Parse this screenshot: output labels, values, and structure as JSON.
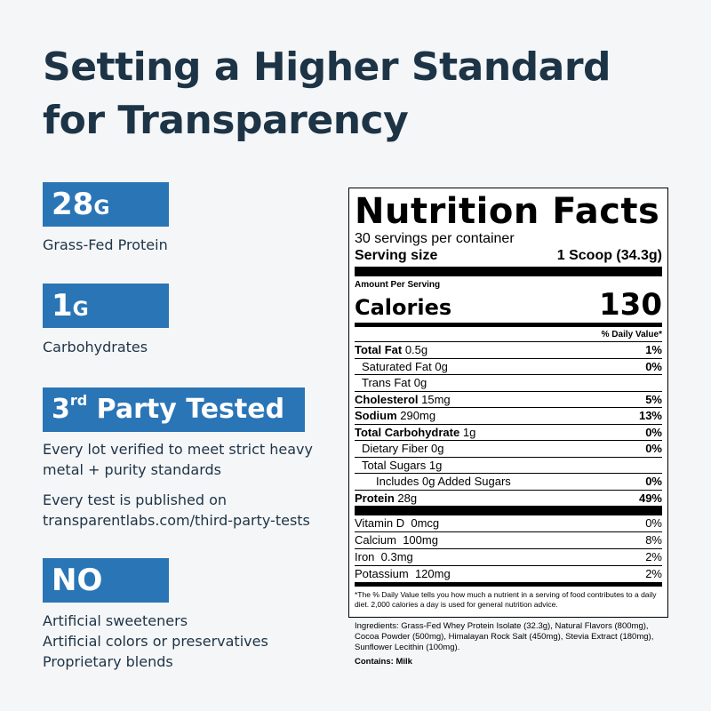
{
  "headline": {
    "line1": "Setting a Higher Standard",
    "line2": "for Transparency"
  },
  "colors": {
    "accent": "#2a75b6",
    "text": "#1d3446",
    "background": "#f5f6f8"
  },
  "features": {
    "protein": {
      "value": "28",
      "unit": "G",
      "label": "Grass-Fed Protein"
    },
    "carbs": {
      "value": "1",
      "unit": "G",
      "label": "Carbohydrates"
    },
    "tested": {
      "num": "3",
      "sup": "rd",
      "text": " Party Tested",
      "desc1_line1": "Every lot verified to meet strict heavy",
      "desc1_line2": "metal + purity standards",
      "desc2_line1": "Every test is published on",
      "desc2_line2": "transparentlabs.com/third-party-tests"
    },
    "no": {
      "label": "NO",
      "items": [
        "Artificial sweeteners",
        "Artificial colors or preservatives",
        "Proprietary blends"
      ]
    }
  },
  "nutrition": {
    "title": "Nutrition Facts",
    "servings": "30 servings per container",
    "serving_size_label": "Serving size",
    "serving_size_value": "1 Scoop (34.3g)",
    "amount_per_serving": "Amount Per Serving",
    "calories_label": "Calories",
    "calories_value": "130",
    "dv_header": "% Daily Value*",
    "rows": [
      {
        "name": "Total Fat",
        "amount": "0.5g",
        "dv": "1%"
      },
      {
        "name": "Saturated Fat",
        "amount": "0g",
        "dv": "0%"
      },
      {
        "name": "Trans Fat",
        "amount": "0g",
        "dv": ""
      },
      {
        "name": "Cholesterol",
        "amount": "15mg",
        "dv": "5%"
      },
      {
        "name": "Sodium",
        "amount": "290mg",
        "dv": "13%"
      },
      {
        "name": "Total Carbohydrate",
        "amount": "1g",
        "dv": "0%"
      },
      {
        "name": "Dietary Fiber",
        "amount": "0g",
        "dv": "0%"
      },
      {
        "name": "Total Sugars",
        "amount": "1g",
        "dv": ""
      },
      {
        "name": "Includes 0g Added Sugars",
        "amount": "",
        "dv": "0%"
      },
      {
        "name": "Protein",
        "amount": "28g",
        "dv": "49%"
      }
    ],
    "vitamins": [
      {
        "name": "Vitamin D",
        "amount": "0mcg",
        "dv": "0%"
      },
      {
        "name": "Calcium",
        "amount": "100mg",
        "dv": "8%"
      },
      {
        "name": "Iron",
        "amount": "0.3mg",
        "dv": "2%"
      },
      {
        "name": "Potassium",
        "amount": "120mg",
        "dv": "2%"
      }
    ],
    "footnote": "*The % Daily Value tells you how much a nutrient in a serving of food contributes to a daily diet. 2,000 calories a day is used for general nutrition advice."
  },
  "ingredients": "Ingredients: Grass-Fed Whey Protein Isolate (32.3g), Natural Flavors (800mg), Cocoa Powder (500mg), Himalayan Rock Salt (450mg), Stevia Extract (180mg), Sunflower Lecithin (100mg).",
  "contains": "Contains: Milk"
}
